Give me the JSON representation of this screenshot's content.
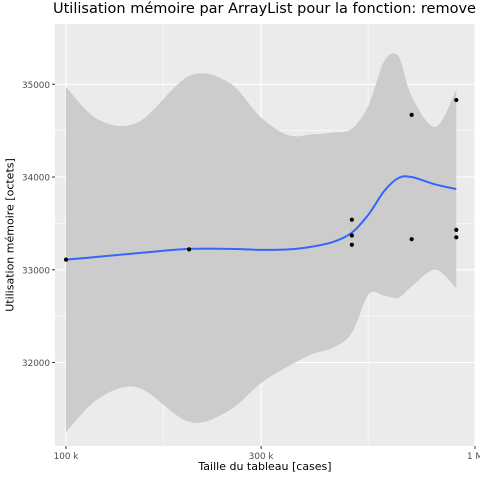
{
  "chart_data": {
    "type": "scatter",
    "title": "Utilisation mémoire par ArrayList pour la fonction: remove",
    "xlabel": "Taille du tableau [cases]",
    "ylabel": "Utilisation mémoire [octets]",
    "x_scale": "log10",
    "xlim": [
      94000,
      1000000
    ],
    "ylim": [
      31100,
      35650
    ],
    "x_ticks": [
      100000,
      300000,
      1000000
    ],
    "x_tick_labels": [
      "100 k",
      "300 k",
      "1 M"
    ],
    "y_ticks": [
      32000,
      33000,
      34000,
      35000
    ],
    "y_tick_labels": [
      "32000",
      "33000",
      "34000",
      "35000"
    ],
    "grid": true,
    "points": [
      {
        "x": 100000,
        "y": 33110
      },
      {
        "x": 200000,
        "y": 33220
      },
      {
        "x": 500000,
        "y": 33540
      },
      {
        "x": 500000,
        "y": 33370
      },
      {
        "x": 500000,
        "y": 33270
      },
      {
        "x": 700000,
        "y": 34670
      },
      {
        "x": 700000,
        "y": 33330
      },
      {
        "x": 900000,
        "y": 34830
      },
      {
        "x": 900000,
        "y": 33430
      },
      {
        "x": 900000,
        "y": 33350
      }
    ],
    "smooth": {
      "x": [
        100000,
        120000,
        150000,
        200000,
        250000,
        300000,
        350000,
        400000,
        450000,
        500000,
        550000,
        600000,
        650000,
        700000,
        800000,
        900000
      ],
      "y": [
        33110,
        33140,
        33180,
        33225,
        33225,
        33215,
        33220,
        33250,
        33300,
        33400,
        33600,
        33850,
        33990,
        34000,
        33920,
        33870
      ],
      "upper": [
        34970,
        34620,
        34590,
        35090,
        35020,
        34640,
        34450,
        34460,
        34480,
        34520,
        34780,
        35250,
        35300,
        34870,
        34540,
        34940
      ],
      "lower": [
        31250,
        31610,
        31730,
        31360,
        31480,
        31780,
        31960,
        32090,
        32160,
        32320,
        32740,
        32720,
        32700,
        32820,
        33000,
        32800
      ]
    },
    "colors": {
      "panel": "#ebebeb",
      "grid": "#ffffff",
      "ribbon": "#cccccc",
      "line": "#3366ff",
      "point": "#000000"
    }
  }
}
